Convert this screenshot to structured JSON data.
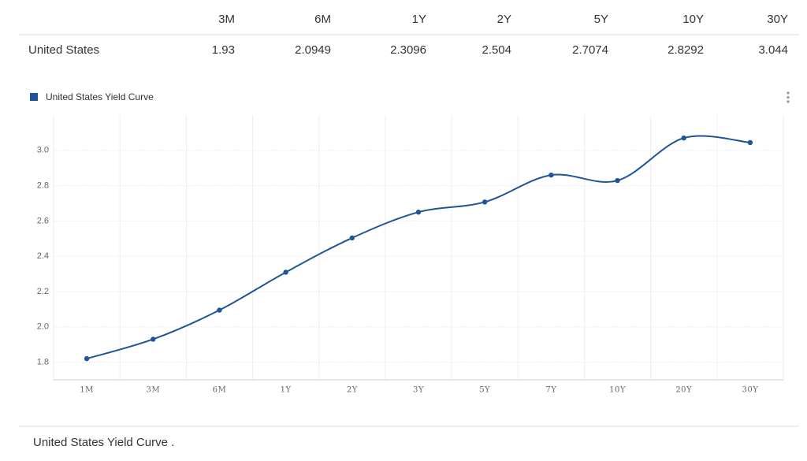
{
  "table": {
    "columns": [
      "3M",
      "6M",
      "1Y",
      "2Y",
      "5Y",
      "10Y",
      "30Y"
    ],
    "rows": [
      [
        "United States",
        "1.93",
        "2.0949",
        "2.3096",
        "2.504",
        "2.7074",
        "2.8292",
        "3.044"
      ]
    ]
  },
  "chart_data": {
    "type": "line",
    "categories": [
      "1M",
      "3M",
      "6M",
      "1Y",
      "2Y",
      "3Y",
      "5Y",
      "7Y",
      "10Y",
      "20Y",
      "30Y"
    ],
    "series": [
      {
        "name": "United States Yield Curve",
        "color": "#1f5596",
        "values": [
          1.82,
          1.93,
          2.0949,
          2.3096,
          2.504,
          2.65,
          2.7074,
          2.86,
          2.8292,
          3.07,
          3.044
        ]
      }
    ],
    "ylim": [
      1.7,
      3.2
    ],
    "yticks": [
      1.8,
      {
        "value": 2,
        "label": "2.0"
      },
      2.2,
      2.4,
      2.6,
      2.8,
      {
        "value": 3,
        "label": "3.0"
      }
    ],
    "grid": true
  },
  "caption": "United States Yield Curve ."
}
